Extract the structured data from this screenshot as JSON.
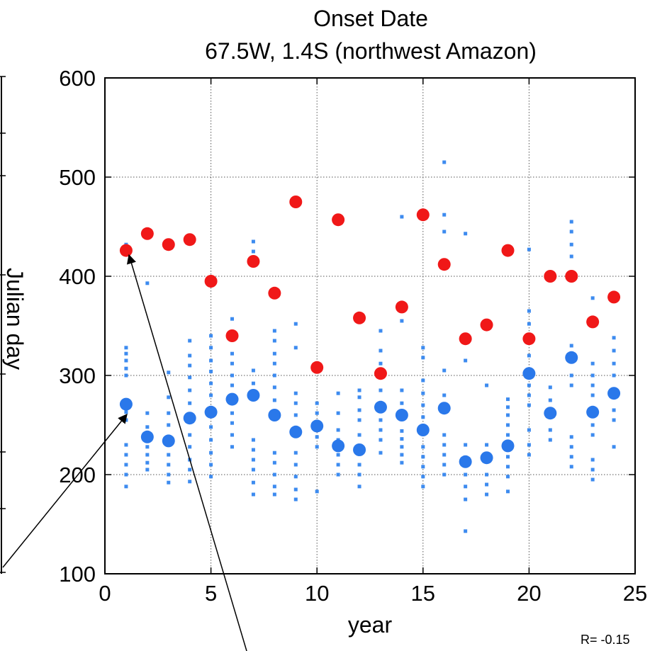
{
  "chart_data": {
    "type": "scatter",
    "title": "Onset Date",
    "subtitle": "67.5W, 1.4S (northwest Amazon)",
    "xlabel": "year",
    "ylabel": "Julian day",
    "xlim": [
      0,
      25
    ],
    "ylim": [
      100,
      600
    ],
    "xticks": [
      "0",
      "5",
      "10",
      "15",
      "20",
      "25"
    ],
    "yticks": [
      "100",
      "200",
      "300",
      "400",
      "500",
      "600"
    ],
    "grid": true,
    "annotation": "R= -0.15",
    "colors": {
      "ensemble": "#3d8bef",
      "mean": "#2a78ea",
      "observed": "#f01818"
    },
    "series": [
      {
        "key": "mean",
        "values": [
          [
            1,
            271
          ],
          [
            2,
            238
          ],
          [
            3,
            234
          ],
          [
            4,
            257
          ],
          [
            5,
            263
          ],
          [
            6,
            276
          ],
          [
            7,
            280
          ],
          [
            8,
            260
          ],
          [
            9,
            243
          ],
          [
            10,
            249
          ],
          [
            11,
            229
          ],
          [
            12,
            225
          ],
          [
            13,
            268
          ],
          [
            14,
            260
          ],
          [
            15,
            245
          ],
          [
            16,
            267
          ],
          [
            17,
            213
          ],
          [
            18,
            217
          ],
          [
            19,
            229
          ],
          [
            20,
            302
          ],
          [
            21,
            262
          ],
          [
            22,
            318
          ],
          [
            23,
            263
          ],
          [
            24,
            282
          ]
        ]
      },
      {
        "key": "observed",
        "values": [
          [
            1,
            426
          ],
          [
            2,
            443
          ],
          [
            3,
            432
          ],
          [
            4,
            437
          ],
          [
            5,
            395
          ],
          [
            6,
            340
          ],
          [
            7,
            415
          ],
          [
            8,
            383
          ],
          [
            9,
            475
          ],
          [
            10,
            308
          ],
          [
            11,
            457
          ],
          [
            12,
            358
          ],
          [
            13,
            302
          ],
          [
            14,
            369
          ],
          [
            15,
            462
          ],
          [
            16,
            412
          ],
          [
            17,
            337
          ],
          [
            18,
            351
          ],
          [
            19,
            426
          ],
          [
            20,
            337
          ],
          [
            21,
            400
          ],
          [
            22,
            400
          ],
          [
            23,
            354
          ],
          [
            24,
            379
          ]
        ]
      },
      {
        "key": "ensemble",
        "values": [
          [
            1,
            188
          ],
          [
            1,
            200
          ],
          [
            1,
            210
          ],
          [
            1,
            220
          ],
          [
            1,
            230
          ],
          [
            1,
            255
          ],
          [
            1,
            263
          ],
          [
            1,
            300
          ],
          [
            1,
            307
          ],
          [
            1,
            315
          ],
          [
            1,
            322
          ],
          [
            1,
            328
          ],
          [
            1,
            432
          ],
          [
            2,
            205
          ],
          [
            2,
            212
          ],
          [
            2,
            220
          ],
          [
            2,
            228
          ],
          [
            2,
            248
          ],
          [
            2,
            262
          ],
          [
            2,
            393
          ],
          [
            3,
            192
          ],
          [
            3,
            200
          ],
          [
            3,
            210
          ],
          [
            3,
            220
          ],
          [
            3,
            250
          ],
          [
            3,
            262
          ],
          [
            3,
            278
          ],
          [
            3,
            303
          ],
          [
            4,
            193
          ],
          [
            4,
            205
          ],
          [
            4,
            215
          ],
          [
            4,
            228
          ],
          [
            4,
            240
          ],
          [
            4,
            272
          ],
          [
            4,
            285
          ],
          [
            4,
            298
          ],
          [
            4,
            310
          ],
          [
            4,
            320
          ],
          [
            4,
            335
          ],
          [
            5,
            198
          ],
          [
            5,
            210
          ],
          [
            5,
            222
          ],
          [
            5,
            235
          ],
          [
            5,
            248
          ],
          [
            5,
            280
          ],
          [
            5,
            292
          ],
          [
            5,
            304
          ],
          [
            5,
            315
          ],
          [
            5,
            328
          ],
          [
            5,
            340
          ],
          [
            6,
            228
          ],
          [
            6,
            240
          ],
          [
            6,
            252
          ],
          [
            6,
            262
          ],
          [
            6,
            290
          ],
          [
            6,
            300
          ],
          [
            6,
            312
          ],
          [
            6,
            322
          ],
          [
            6,
            357
          ],
          [
            7,
            180
          ],
          [
            7,
            192
          ],
          [
            7,
            205
          ],
          [
            7,
            215
          ],
          [
            7,
            225
          ],
          [
            7,
            235
          ],
          [
            7,
            292
          ],
          [
            7,
            305
          ],
          [
            7,
            425
          ],
          [
            7,
            435
          ],
          [
            8,
            180
          ],
          [
            8,
            188
          ],
          [
            8,
            200
          ],
          [
            8,
            212
          ],
          [
            8,
            222
          ],
          [
            8,
            275
          ],
          [
            8,
            288
          ],
          [
            8,
            300
          ],
          [
            8,
            312
          ],
          [
            8,
            322
          ],
          [
            8,
            335
          ],
          [
            8,
            345
          ],
          [
            9,
            175
          ],
          [
            9,
            185
          ],
          [
            9,
            198
          ],
          [
            9,
            210
          ],
          [
            9,
            222
          ],
          [
            9,
            260
          ],
          [
            9,
            272
          ],
          [
            9,
            282
          ],
          [
            9,
            328
          ],
          [
            9,
            352
          ],
          [
            10,
            183
          ],
          [
            10,
            228
          ],
          [
            10,
            238
          ],
          [
            10,
            262
          ],
          [
            10,
            272
          ],
          [
            11,
            200
          ],
          [
            11,
            210
          ],
          [
            11,
            220
          ],
          [
            11,
            235
          ],
          [
            11,
            245
          ],
          [
            11,
            262
          ],
          [
            11,
            282
          ],
          [
            12,
            188
          ],
          [
            12,
            200
          ],
          [
            12,
            210
          ],
          [
            12,
            240
          ],
          [
            12,
            255
          ],
          [
            12,
            265
          ],
          [
            12,
            278
          ],
          [
            12,
            285
          ],
          [
            13,
            222
          ],
          [
            13,
            235
          ],
          [
            13,
            245
          ],
          [
            13,
            255
          ],
          [
            13,
            285
          ],
          [
            13,
            300
          ],
          [
            13,
            312
          ],
          [
            13,
            325
          ],
          [
            13,
            345
          ],
          [
            14,
            212
          ],
          [
            14,
            220
          ],
          [
            14,
            228
          ],
          [
            14,
            236
          ],
          [
            14,
            244
          ],
          [
            14,
            272
          ],
          [
            14,
            285
          ],
          [
            14,
            355
          ],
          [
            14,
            460
          ],
          [
            15,
            188
          ],
          [
            15,
            198
          ],
          [
            15,
            208
          ],
          [
            15,
            218
          ],
          [
            15,
            228
          ],
          [
            15,
            258
          ],
          [
            15,
            270
          ],
          [
            15,
            282
          ],
          [
            15,
            295
          ],
          [
            15,
            318
          ],
          [
            15,
            328
          ],
          [
            16,
            200
          ],
          [
            16,
            210
          ],
          [
            16,
            220
          ],
          [
            16,
            230
          ],
          [
            16,
            240
          ],
          [
            16,
            280
          ],
          [
            16,
            305
          ],
          [
            16,
            445
          ],
          [
            16,
            462
          ],
          [
            16,
            515
          ],
          [
            17,
            143
          ],
          [
            17,
            175
          ],
          [
            17,
            188
          ],
          [
            17,
            200
          ],
          [
            17,
            230
          ],
          [
            17,
            315
          ],
          [
            17,
            443
          ],
          [
            18,
            180
          ],
          [
            18,
            190
          ],
          [
            18,
            200
          ],
          [
            18,
            230
          ],
          [
            18,
            290
          ],
          [
            19,
            183
          ],
          [
            19,
            198
          ],
          [
            19,
            208
          ],
          [
            19,
            218
          ],
          [
            19,
            240
          ],
          [
            19,
            250
          ],
          [
            19,
            260
          ],
          [
            19,
            268
          ],
          [
            19,
            276
          ],
          [
            20,
            220
          ],
          [
            20,
            230
          ],
          [
            20,
            245
          ],
          [
            20,
            270
          ],
          [
            20,
            280
          ],
          [
            20,
            290
          ],
          [
            20,
            320
          ],
          [
            20,
            335
          ],
          [
            20,
            352
          ],
          [
            20,
            365
          ],
          [
            20,
            427
          ],
          [
            21,
            235
          ],
          [
            21,
            245
          ],
          [
            21,
            275
          ],
          [
            21,
            288
          ],
          [
            22,
            208
          ],
          [
            22,
            218
          ],
          [
            22,
            228
          ],
          [
            22,
            238
          ],
          [
            22,
            290
          ],
          [
            22,
            300
          ],
          [
            22,
            330
          ],
          [
            22,
            400
          ],
          [
            22,
            420
          ],
          [
            22,
            432
          ],
          [
            22,
            445
          ],
          [
            22,
            455
          ],
          [
            23,
            195
          ],
          [
            23,
            205
          ],
          [
            23,
            215
          ],
          [
            23,
            240
          ],
          [
            23,
            250
          ],
          [
            23,
            280
          ],
          [
            23,
            290
          ],
          [
            23,
            300
          ],
          [
            23,
            312
          ],
          [
            23,
            355
          ],
          [
            23,
            378
          ],
          [
            24,
            228
          ],
          [
            24,
            255
          ],
          [
            24,
            265
          ],
          [
            24,
            300
          ],
          [
            24,
            312
          ],
          [
            24,
            325
          ],
          [
            24,
            338
          ],
          [
            24,
            380
          ]
        ]
      }
    ]
  },
  "external_labels": {
    "left_axis_label": "Julian day"
  }
}
